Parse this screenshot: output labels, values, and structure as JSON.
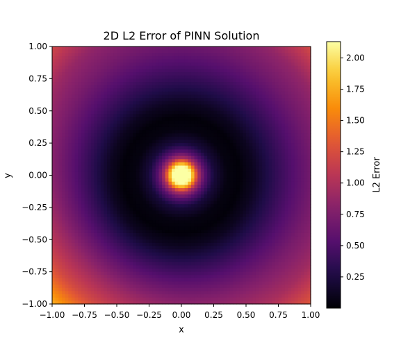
{
  "chart_data": {
    "type": "heatmap",
    "title": "2D L2 Error of PINN Solution",
    "xlabel": "x",
    "ylabel": "y",
    "xlim": [
      -1.0,
      1.0
    ],
    "ylim": [
      -1.0,
      1.0
    ],
    "x_ticks": [
      "−1.00",
      "−0.75",
      "−0.50",
      "−0.25",
      "0.00",
      "0.25",
      "0.50",
      "0.75",
      "1.00"
    ],
    "y_ticks": [
      "−1.00",
      "−0.75",
      "−0.50",
      "−0.25",
      "0.00",
      "0.25",
      "0.50",
      "0.75",
      "1.00"
    ],
    "colormap": "inferno",
    "colorbar": {
      "label": "L2 Error",
      "min": 0.0,
      "max": 2.13,
      "ticks": [
        "0.25",
        "0.50",
        "0.75",
        "1.00",
        "1.25",
        "1.50",
        "1.75",
        "2.00"
      ]
    },
    "grid": false,
    "field_description": "radially symmetric error, peak ~2.1 at origin, minimum ~0 at radius ~0.45, rising to ~1.0 at edges and ~1.75 at bottom-left corner",
    "radial_profile": [
      {
        "r": 0.0,
        "value": 2.13
      },
      {
        "r": 0.07,
        "value": 2.13
      },
      {
        "r": 0.1,
        "value": 1.6
      },
      {
        "r": 0.13,
        "value": 1.0
      },
      {
        "r": 0.18,
        "value": 0.55
      },
      {
        "r": 0.25,
        "value": 0.22
      },
      {
        "r": 0.35,
        "value": 0.05
      },
      {
        "r": 0.45,
        "value": 0.02
      },
      {
        "r": 0.55,
        "value": 0.12
      },
      {
        "r": 0.7,
        "value": 0.38
      },
      {
        "r": 0.85,
        "value": 0.62
      },
      {
        "r": 1.0,
        "value": 0.85
      },
      {
        "r": 1.2,
        "value": 1.12
      },
      {
        "r": 1.41,
        "value": 1.55
      }
    ],
    "corner_values": {
      "top-left": 1.2,
      "top-right": 1.22,
      "bottom-left": 1.75,
      "bottom-right": 1.3
    }
  }
}
